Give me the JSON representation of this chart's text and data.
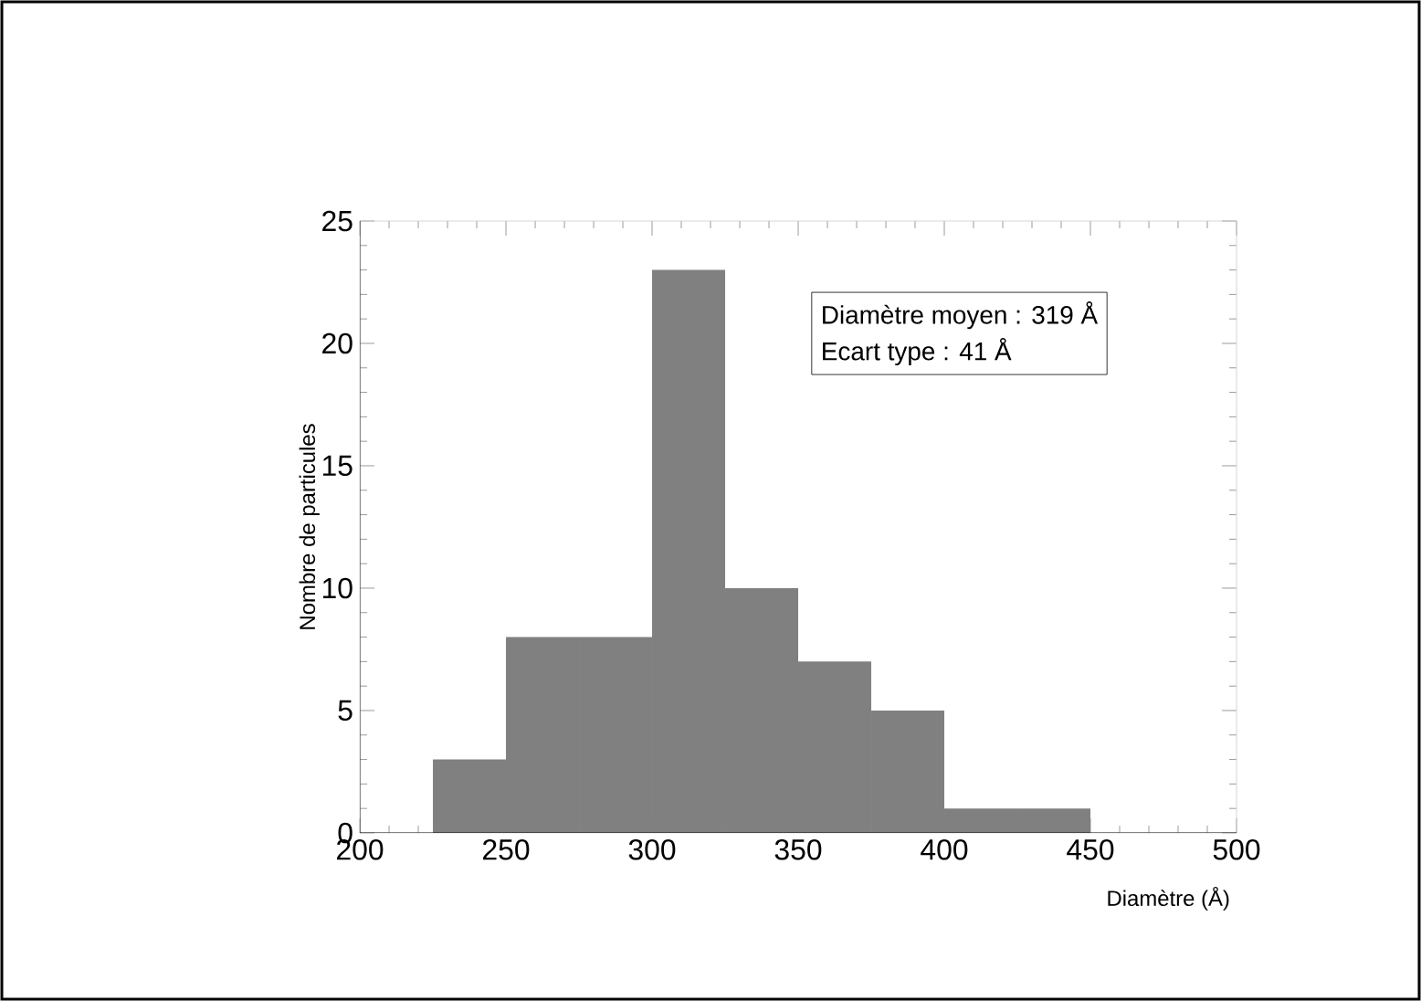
{
  "chart_data": {
    "type": "histogram",
    "xlabel": "Diamètre (Å)",
    "ylabel": "Nombre de particules",
    "bins": [
      225,
      250,
      275,
      300,
      325,
      350,
      375,
      400,
      425,
      450
    ],
    "values": [
      3,
      8,
      8,
      23,
      10,
      7,
      5,
      1,
      1
    ],
    "color": "#808080",
    "xlim": [
      200,
      500
    ],
    "ylim": [
      0,
      25
    ],
    "xticks": [
      200,
      250,
      300,
      350,
      400,
      450,
      500
    ],
    "yticks": [
      0,
      5,
      10,
      15,
      20,
      25
    ],
    "annotations": [
      "Diamètre moyen : 319 Å",
      "Ecart type : 41 Å"
    ],
    "grid": false
  }
}
